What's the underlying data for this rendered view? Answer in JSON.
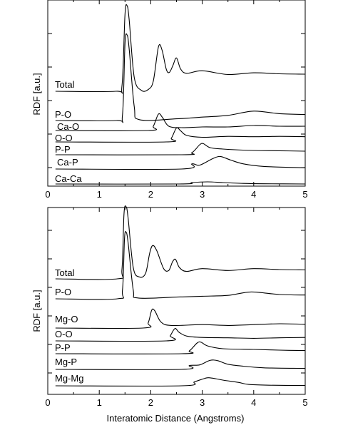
{
  "chart_data": [
    {
      "type": "line",
      "panel": "top",
      "xlabel": "",
      "ylabel": "RDF [a.u.]",
      "xlim": [
        0,
        5
      ],
      "x_ticks": [
        "0",
        "1",
        "2",
        "3",
        "4",
        "5"
      ],
      "y_ticks_labeled": false,
      "grid": false,
      "series": [
        {
          "name": "Total",
          "points": [
            [
              0.15,
              0.0
            ],
            [
              1.32,
              0.0
            ],
            [
              1.44,
              0.3
            ],
            [
              1.5,
              4.5
            ],
            [
              1.54,
              5.0
            ],
            [
              1.58,
              4.2
            ],
            [
              1.68,
              0.8
            ],
            [
              1.82,
              0.05
            ],
            [
              1.95,
              0.1
            ],
            [
              2.05,
              0.6
            ],
            [
              2.15,
              2.6
            ],
            [
              2.22,
              2.4
            ],
            [
              2.3,
              1.3
            ],
            [
              2.36,
              1.1
            ],
            [
              2.43,
              1.5
            ],
            [
              2.5,
              1.95
            ],
            [
              2.58,
              1.3
            ],
            [
              2.7,
              1.05
            ],
            [
              3.0,
              1.2
            ],
            [
              3.5,
              0.98
            ],
            [
              4.0,
              1.08
            ],
            [
              4.5,
              1.02
            ],
            [
              5.0,
              1.0
            ]
          ]
        },
        {
          "name": "P-O",
          "points": [
            [
              0.15,
              0.0
            ],
            [
              1.33,
              0.0
            ],
            [
              1.45,
              0.3
            ],
            [
              1.5,
              4.5
            ],
            [
              1.54,
              5.0
            ],
            [
              1.58,
              4.2
            ],
            [
              1.68,
              0.8
            ],
            [
              1.78,
              0.05
            ],
            [
              2.5,
              0.1
            ],
            [
              3.0,
              0.2
            ],
            [
              3.5,
              0.3
            ],
            [
              4.0,
              0.55
            ],
            [
              4.5,
              0.4
            ],
            [
              5.0,
              0.35
            ]
          ]
        },
        {
          "name": "Ca-O",
          "points": [
            [
              0.15,
              0.0
            ],
            [
              1.95,
              0.0
            ],
            [
              2.05,
              0.3
            ],
            [
              2.15,
              1.15
            ],
            [
              2.23,
              0.9
            ],
            [
              2.35,
              0.3
            ],
            [
              2.6,
              0.2
            ],
            [
              3.0,
              0.25
            ],
            [
              3.5,
              0.25
            ],
            [
              4.0,
              0.35
            ],
            [
              4.5,
              0.3
            ],
            [
              5.0,
              0.3
            ]
          ]
        },
        {
          "name": "O-O",
          "points": [
            [
              0.15,
              0.0
            ],
            [
              2.3,
              0.0
            ],
            [
              2.4,
              0.2
            ],
            [
              2.5,
              0.75
            ],
            [
              2.58,
              0.6
            ],
            [
              2.7,
              0.35
            ],
            [
              3.0,
              0.25
            ],
            [
              3.5,
              0.3
            ],
            [
              4.0,
              0.28
            ],
            [
              4.5,
              0.3
            ],
            [
              5.0,
              0.28
            ]
          ]
        },
        {
          "name": "P-P",
          "points": [
            [
              0.15,
              0.0
            ],
            [
              2.6,
              0.0
            ],
            [
              2.8,
              0.15
            ],
            [
              2.95,
              0.7
            ],
            [
              3.02,
              0.78
            ],
            [
              3.15,
              0.5
            ],
            [
              3.4,
              0.4
            ],
            [
              4.0,
              0.3
            ],
            [
              4.5,
              0.28
            ],
            [
              5.0,
              0.25
            ]
          ]
        },
        {
          "name": "Ca-P",
          "points": [
            [
              0.15,
              0.0
            ],
            [
              2.6,
              0.0
            ],
            [
              2.8,
              0.4
            ],
            [
              2.95,
              0.3
            ],
            [
              3.2,
              0.8
            ],
            [
              3.35,
              0.98
            ],
            [
              3.55,
              0.7
            ],
            [
              3.8,
              0.4
            ],
            [
              4.2,
              0.2
            ],
            [
              5.0,
              0.1
            ]
          ]
        },
        {
          "name": "Ca-Ca",
          "points": [
            [
              0.15,
              0.0
            ],
            [
              2.55,
              0.0
            ],
            [
              2.8,
              0.2
            ],
            [
              3.1,
              0.3
            ],
            [
              3.4,
              0.2
            ],
            [
              3.8,
              0.08
            ],
            [
              4.2,
              0.03
            ],
            [
              5.0,
              0.0
            ]
          ]
        }
      ]
    },
    {
      "type": "line",
      "panel": "bottom",
      "xlabel": "Interatomic Distance (Angstroms)",
      "ylabel": "RDF [a.u.]",
      "xlim": [
        0,
        5
      ],
      "x_ticks": [
        "0",
        "1",
        "2",
        "3",
        "4",
        "5"
      ],
      "y_ticks_labeled": false,
      "grid": false,
      "series": [
        {
          "name": "Total",
          "points": [
            [
              0.15,
              0.0
            ],
            [
              1.35,
              0.0
            ],
            [
              1.44,
              0.5
            ],
            [
              1.48,
              3.5
            ],
            [
              1.52,
              3.9
            ],
            [
              1.56,
              3.3
            ],
            [
              1.66,
              0.6
            ],
            [
              1.78,
              0.1
            ],
            [
              1.9,
              0.3
            ],
            [
              1.98,
              1.4
            ],
            [
              2.04,
              1.8
            ],
            [
              2.12,
              1.5
            ],
            [
              2.25,
              0.55
            ],
            [
              2.35,
              0.45
            ],
            [
              2.42,
              0.9
            ],
            [
              2.48,
              1.05
            ],
            [
              2.56,
              0.6
            ],
            [
              2.7,
              0.4
            ],
            [
              3.0,
              0.55
            ],
            [
              3.5,
              0.45
            ],
            [
              4.0,
              0.55
            ],
            [
              4.5,
              0.5
            ],
            [
              5.0,
              0.48
            ]
          ]
        },
        {
          "name": "P-O",
          "points": [
            [
              0.15,
              0.0
            ],
            [
              1.35,
              0.0
            ],
            [
              1.45,
              0.5
            ],
            [
              1.49,
              3.5
            ],
            [
              1.52,
              3.9
            ],
            [
              1.56,
              3.3
            ],
            [
              1.66,
              0.5
            ],
            [
              1.75,
              0.05
            ],
            [
              2.5,
              0.1
            ],
            [
              3.0,
              0.15
            ],
            [
              3.5,
              0.2
            ],
            [
              3.95,
              0.4
            ],
            [
              4.5,
              0.25
            ],
            [
              5.0,
              0.22
            ]
          ]
        },
        {
          "name": "Mg-O",
          "points": [
            [
              0.15,
              0.0
            ],
            [
              1.85,
              0.0
            ],
            [
              1.95,
              0.3
            ],
            [
              2.02,
              1.05
            ],
            [
              2.08,
              1.0
            ],
            [
              2.2,
              0.35
            ],
            [
              2.4,
              0.15
            ],
            [
              3.0,
              0.2
            ],
            [
              3.5,
              0.15
            ],
            [
              4.0,
              0.2
            ],
            [
              4.5,
              0.25
            ],
            [
              5.0,
              0.22
            ]
          ]
        },
        {
          "name": "O-O",
          "points": [
            [
              0.15,
              0.0
            ],
            [
              2.3,
              0.0
            ],
            [
              2.38,
              0.3
            ],
            [
              2.47,
              0.72
            ],
            [
              2.55,
              0.5
            ],
            [
              2.7,
              0.28
            ],
            [
              3.0,
              0.2
            ],
            [
              3.5,
              0.18
            ],
            [
              4.0,
              0.15
            ],
            [
              4.5,
              0.18
            ],
            [
              5.0,
              0.2
            ]
          ]
        },
        {
          "name": "P-P",
          "points": [
            [
              0.15,
              0.0
            ],
            [
              2.6,
              0.0
            ],
            [
              2.75,
              0.2
            ],
            [
              2.9,
              0.75
            ],
            [
              2.98,
              0.8
            ],
            [
              3.1,
              0.55
            ],
            [
              3.4,
              0.35
            ],
            [
              4.0,
              0.3
            ],
            [
              4.5,
              0.25
            ],
            [
              5.0,
              0.22
            ]
          ]
        },
        {
          "name": "Mg-P",
          "points": [
            [
              0.15,
              0.0
            ],
            [
              2.6,
              0.0
            ],
            [
              2.75,
              0.3
            ],
            [
              2.95,
              0.35
            ],
            [
              3.15,
              0.7
            ],
            [
              3.3,
              0.68
            ],
            [
              3.5,
              0.4
            ],
            [
              3.8,
              0.25
            ],
            [
              4.2,
              0.12
            ],
            [
              5.0,
              0.08
            ]
          ]
        },
        {
          "name": "Mg-Mg",
          "points": [
            [
              0.15,
              0.0
            ],
            [
              2.6,
              0.0
            ],
            [
              2.85,
              0.35
            ],
            [
              3.05,
              0.65
            ],
            [
              3.15,
              0.7
            ],
            [
              3.4,
              0.5
            ],
            [
              3.7,
              0.3
            ],
            [
              3.9,
              0.12
            ],
            [
              4.3,
              0.05
            ],
            [
              5.0,
              0.03
            ]
          ]
        }
      ]
    }
  ]
}
